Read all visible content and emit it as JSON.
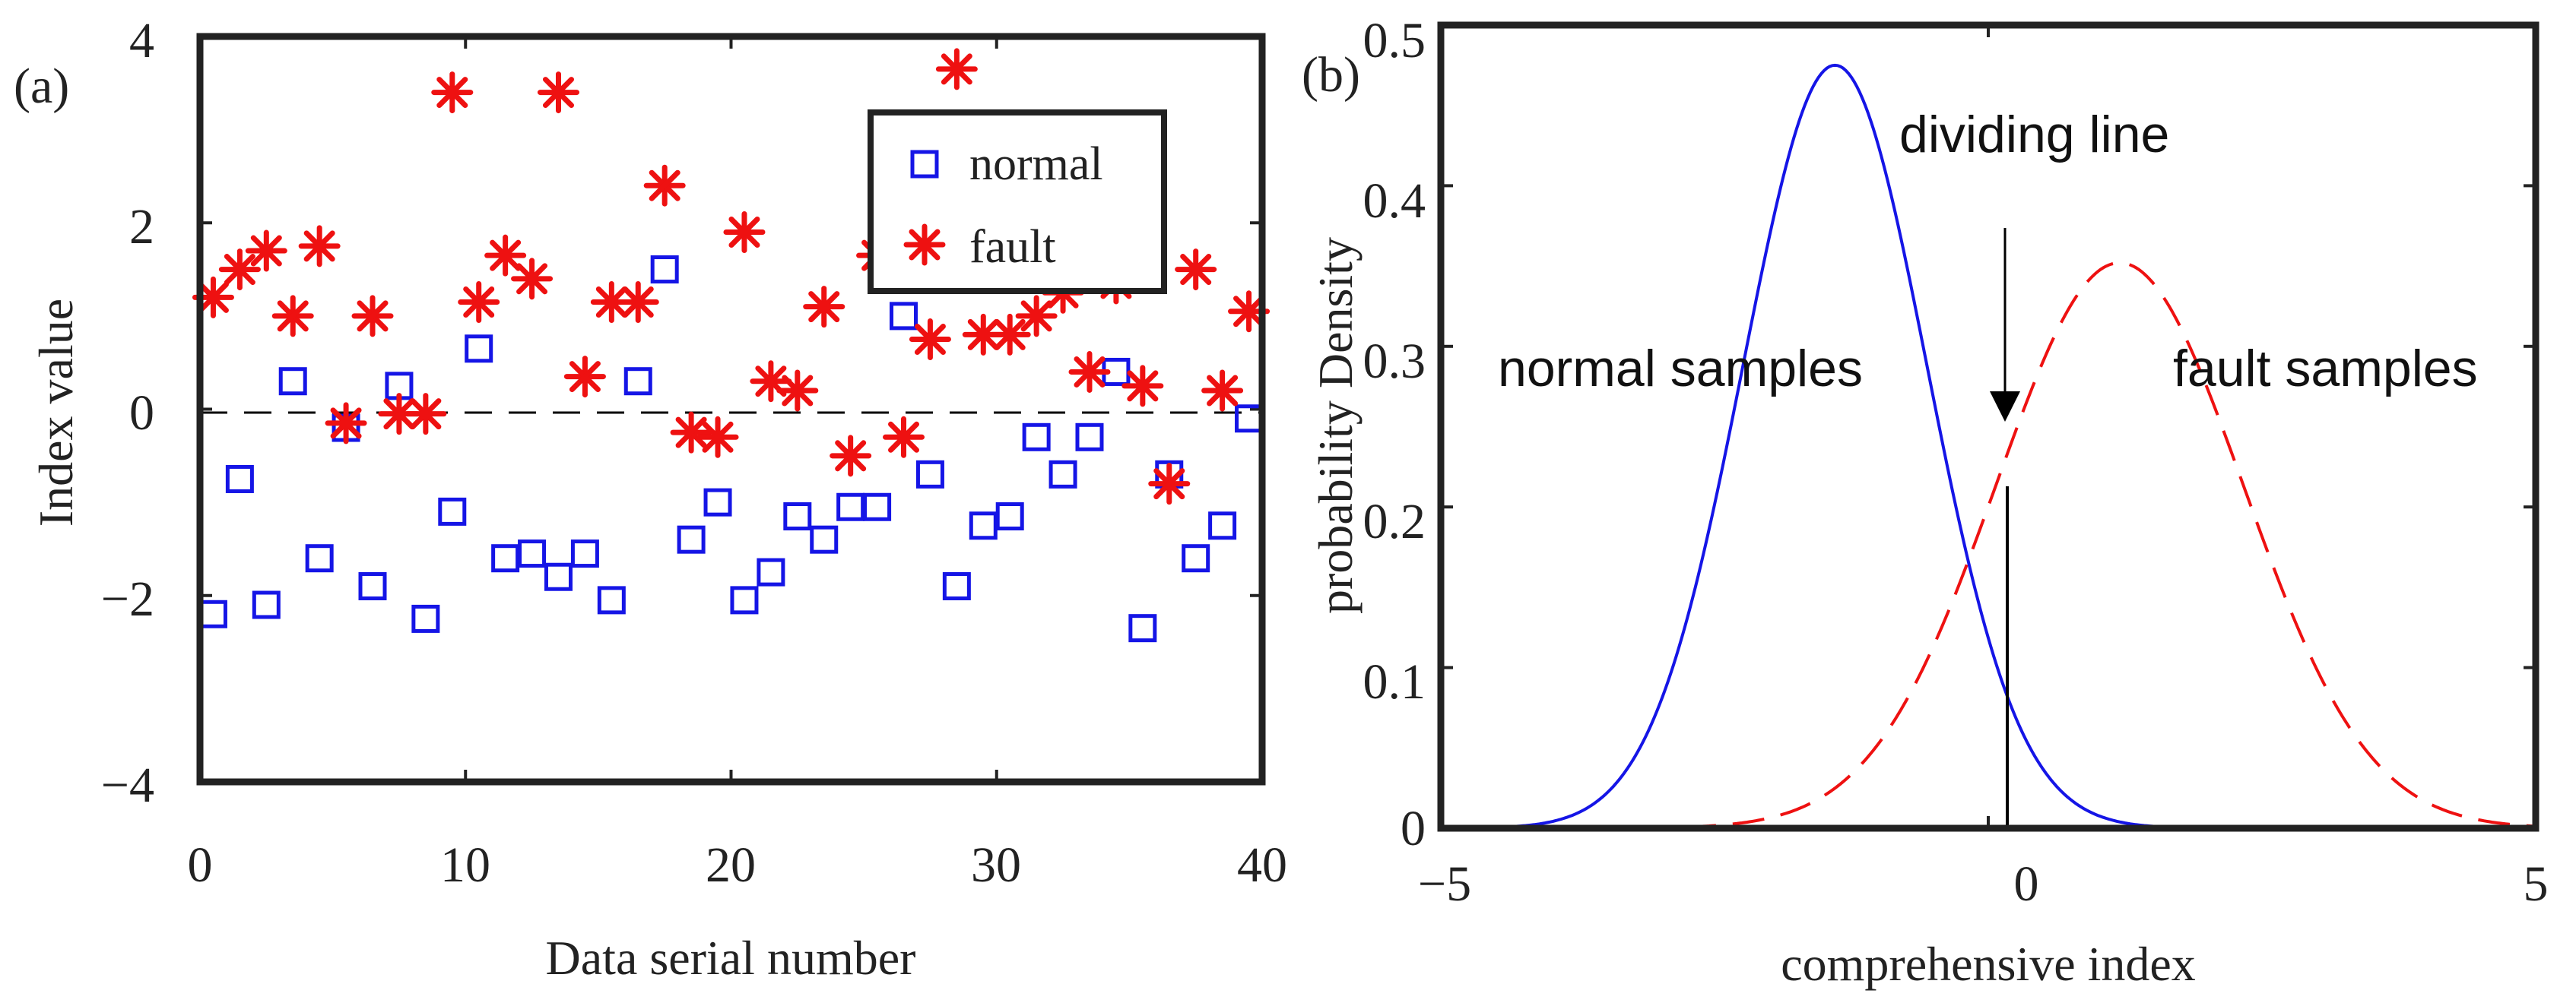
{
  "colors": {
    "normal": "#1515e6",
    "fault": "#ee1111",
    "axis": "#222222",
    "reference": "#000000"
  },
  "chart_data": [
    {
      "id": "a",
      "type": "scatter",
      "panel_label": "(a)",
      "title": "",
      "xlabel": "Data serial number",
      "ylabel": "Index value",
      "xlim": [
        0,
        40
      ],
      "ylim": [
        -4,
        4
      ],
      "xticks": [
        0,
        10,
        20,
        30,
        40
      ],
      "yticks": [
        -4,
        -2,
        0,
        2,
        4
      ],
      "xtick_labels": [
        "0",
        "10",
        "20",
        "30",
        "40"
      ],
      "ytick_labels": [
        "−4",
        "−2",
        "0",
        "2",
        "4"
      ],
      "reference_line": {
        "y": 0,
        "style": "dashed"
      },
      "legend": {
        "position": "top-right",
        "entries": [
          "normal",
          "fault"
        ]
      },
      "series": [
        {
          "name": "normal",
          "marker": "square",
          "x": [
            0.5,
            1.5,
            2.5,
            3.5,
            4.5,
            5.5,
            6.5,
            7.5,
            8.5,
            9.5,
            10.5,
            11.5,
            12.5,
            13.5,
            14.5,
            15.5,
            16.5,
            17.5,
            18.5,
            19.5,
            20.5,
            21.5,
            22.5,
            23.5,
            24.5,
            25.5,
            26.5,
            27.5,
            28.5,
            29.5,
            30.5,
            31.5,
            32.5,
            33.5,
            34.5,
            35.5,
            36.5,
            37.5,
            38.5,
            39.5
          ],
          "y": [
            -2.2,
            -0.75,
            -2.1,
            0.3,
            -1.6,
            -0.2,
            -1.9,
            0.25,
            -2.25,
            -1.1,
            0.65,
            -1.6,
            -1.55,
            -1.8,
            -1.55,
            -2.05,
            0.3,
            1.5,
            -1.4,
            -1.0,
            -2.05,
            -1.75,
            -1.15,
            -1.4,
            -1.05,
            -1.05,
            1.0,
            -0.7,
            -1.9,
            -1.25,
            -1.15,
            -0.3,
            -0.7,
            -0.3,
            0.4,
            -2.35,
            -0.7,
            -1.6,
            -1.25,
            -0.1
          ]
        },
        {
          "name": "fault",
          "marker": "star",
          "x": [
            0.5,
            1.5,
            2.5,
            3.5,
            4.5,
            5.5,
            6.5,
            7.5,
            8.5,
            9.5,
            10.5,
            11.5,
            12.5,
            13.5,
            14.5,
            15.5,
            16.5,
            17.5,
            18.5,
            19.5,
            20.5,
            21.5,
            22.5,
            23.5,
            24.5,
            25.5,
            26.5,
            27.5,
            28.5,
            29.5,
            30.5,
            31.5,
            32.5,
            33.5,
            34.5,
            35.5,
            36.5,
            37.5,
            38.5,
            39.5
          ],
          "y": [
            1.2,
            1.5,
            1.7,
            1.0,
            1.75,
            -0.15,
            1.0,
            -0.05,
            -0.05,
            3.4,
            1.15,
            1.65,
            1.4,
            3.4,
            0.35,
            1.15,
            1.15,
            2.4,
            -0.25,
            -0.3,
            1.9,
            0.3,
            0.2,
            1.1,
            -0.5,
            1.65,
            -0.3,
            0.75,
            3.65,
            0.8,
            0.8,
            1.0,
            1.25,
            0.4,
            1.35,
            0.25,
            -0.8,
            1.5,
            0.2,
            1.05
          ]
        }
      ]
    },
    {
      "id": "b",
      "type": "line",
      "panel_label": "(b)",
      "title": "",
      "xlabel": "comprehensive index",
      "ylabel": "probability Density",
      "xlim": [
        -5,
        5
      ],
      "ylim": [
        0,
        0.5
      ],
      "xticks": [
        -5,
        0,
        5
      ],
      "yticks": [
        0,
        0.1,
        0.2,
        0.3,
        0.4,
        0.5
      ],
      "xtick_labels": [
        "−5",
        "0",
        "5"
      ],
      "ytick_labels": [
        "0",
        "0.1",
        "0.2",
        "0.3",
        "0.4",
        "0.5"
      ],
      "series": [
        {
          "name": "normal samples",
          "style": "solid",
          "distribution": "normal",
          "mean": -1.4,
          "std": 0.84,
          "peak": 0.475
        },
        {
          "name": "fault samples",
          "style": "dashed",
          "distribution": "normal",
          "mean": 1.2,
          "std": 1.13,
          "peak": 0.352
        }
      ],
      "dividing_line": {
        "x": -0.25
      },
      "annotations": {
        "dividing_label": "dividing line",
        "normal_label": "normal samples",
        "fault_label": "fault samples"
      }
    }
  ]
}
